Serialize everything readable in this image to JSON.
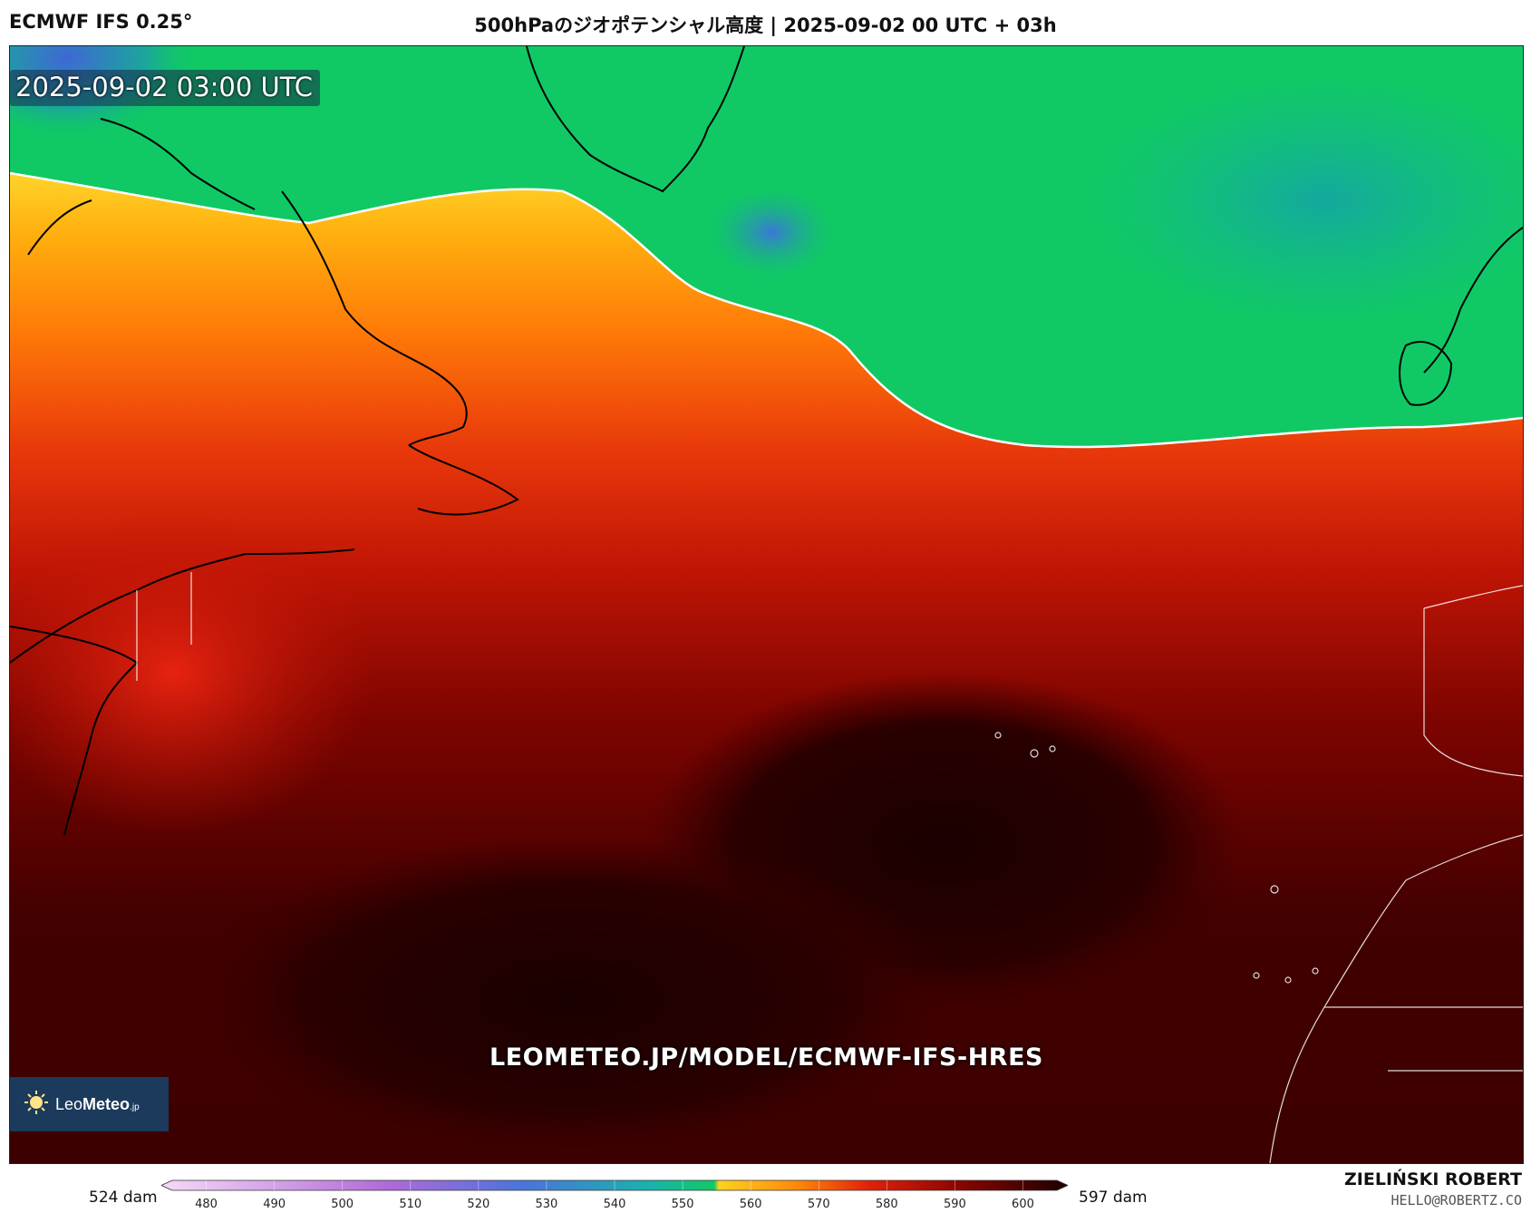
{
  "header": {
    "model": "ECMWF IFS 0.25°",
    "title": "500hPaのジオポテンシャル高度 | 2025-09-02 00 UTC + 03h"
  },
  "map": {
    "valid_time": "2025-09-02 03:00 UTC",
    "watermark_url": "LEOMETEO.JP/MODEL/ECMWF-IFS-HRES",
    "highlighted_contour_dam": 552
  },
  "logo": {
    "name_light": "Leo",
    "name_bold": "Meteo",
    "suffix": ".jp"
  },
  "colorbar": {
    "min_label": "524 dam",
    "max_label": "597 dam",
    "ticks": [
      "480",
      "490",
      "500",
      "510",
      "520",
      "530",
      "540",
      "550",
      "560",
      "570",
      "580",
      "590",
      "600"
    ],
    "range": [
      475,
      605
    ],
    "colors": {
      "low": "#f6d9f7",
      "purple": "#b06ad8",
      "blue": "#4a74db",
      "teal": "#19b3ab",
      "green": "#10c964",
      "yellow": "#ffd21e",
      "orange": "#ff8a0a",
      "red": "#e3200a",
      "darkred": "#8a0500",
      "high": "#1c0000"
    }
  },
  "credit": {
    "author": "ZIELIŃSKI ROBERT",
    "email": "HELLO@ROBERTZ.CO"
  }
}
